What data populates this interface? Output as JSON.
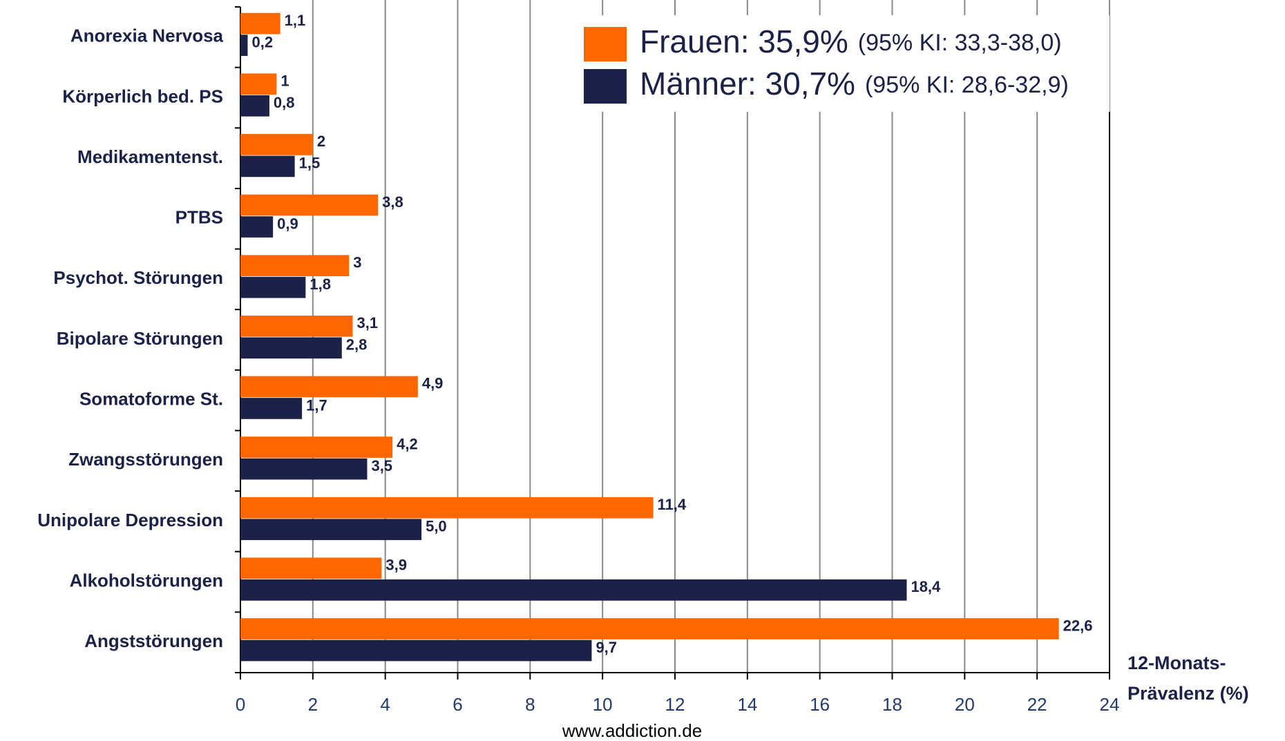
{
  "chart_data": {
    "type": "bar",
    "orientation": "horizontal",
    "categories": [
      "Anorexia Nervosa",
      "Körperlich bed. PS",
      "Medikamentenst.",
      "PTBS",
      "Psychot. Störungen",
      "Bipolare Störungen",
      "Somatoforme St.",
      "Zwangsstörungen",
      "Unipolare Depression",
      "Alkoholstörungen",
      "Angststörungen"
    ],
    "series": [
      {
        "name": "Frauen: 35,9%",
        "legend_note": "(95% KI: 33,3-38,0)",
        "color": "#ff6600",
        "values": [
          1.1,
          1,
          2,
          3.8,
          3,
          3.1,
          4.9,
          4.2,
          11.4,
          3.9,
          22.6
        ],
        "value_labels": [
          "1,1",
          "1",
          "2",
          "3,8",
          "3",
          "3,1",
          "4,9",
          "4,2",
          "11,4",
          "3,9",
          "22,6"
        ]
      },
      {
        "name": "Männer: 30,7%",
        "legend_note": "(95% KI: 28,6-32,9)",
        "color": "#1b2147",
        "values": [
          0.2,
          0.8,
          1.5,
          0.9,
          1.8,
          2.8,
          1.7,
          3.5,
          5.0,
          18.4,
          9.7
        ],
        "value_labels": [
          "0,2",
          "0,8",
          "1,5",
          "0,9",
          "1,8",
          "2,8",
          "1,7",
          "3,5",
          "5,0",
          "18,4",
          "9,7"
        ]
      }
    ],
    "xlim": [
      0,
      24
    ],
    "xticks": [
      0,
      2,
      4,
      6,
      8,
      10,
      12,
      14,
      16,
      18,
      20,
      22,
      24
    ],
    "grid": true,
    "x_label": [
      "12-Monats-",
      "Prävalenz (%)"
    ],
    "source": "www.addiction.de"
  }
}
